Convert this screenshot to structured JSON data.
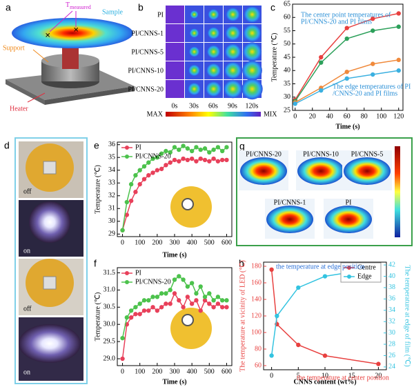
{
  "panels": {
    "a": {
      "label": "a",
      "t_main": "T",
      "t_sub": "measured",
      "sample": "Sample",
      "support": "Support",
      "heater": "Heater"
    },
    "b": {
      "label": "b",
      "rows": [
        "PI",
        "PI/CNNS-1",
        "PI/CNNS-5",
        "PI/CNNS-10",
        "PI/CNNS-20"
      ],
      "cols": [
        "0s",
        "30s",
        "60s",
        "90s",
        "120s"
      ],
      "colorbar": [
        "MAX",
        "MIX"
      ]
    },
    "d": {
      "label": "d",
      "photos": [
        "off",
        "on",
        "off",
        "on"
      ]
    },
    "g": {
      "label": "g",
      "names": [
        "PI/CNNS-20",
        "PI/CNNS-10",
        "PI/CNNS-5",
        "PI/CNNS-1",
        "PI"
      ]
    }
  },
  "chart_data": [
    {
      "type": "line",
      "panel": "c",
      "xlabel": "Time (s)",
      "ylabel": "Temperature (℃)",
      "x": [
        0,
        30,
        60,
        90,
        120
      ],
      "xlim": [
        -3,
        125
      ],
      "ylim": [
        25,
        65
      ],
      "xticks": [
        0,
        20,
        40,
        60,
        80,
        100,
        120
      ],
      "yticks": [
        25,
        30,
        35,
        40,
        45,
        50,
        55,
        60,
        65
      ],
      "series": [
        {
          "color": "#e8403f",
          "values": [
            29,
            45,
            56,
            59.5,
            61.5
          ]
        },
        {
          "color": "#2ca05a",
          "values": [
            28.5,
            43,
            52,
            55,
            56.5
          ]
        },
        {
          "color": "#f08a3c",
          "values": [
            28,
            33.5,
            39.5,
            42.5,
            44
          ]
        },
        {
          "color": "#3bb0e0",
          "values": [
            27.5,
            32.5,
            37,
            38.5,
            40
          ]
        }
      ],
      "annotations": [
        {
          "lines": [
            "The center point temperatures of",
            "PI/CNNS-20 and PI films"
          ],
          "color": "#2a8fd6"
        },
        {
          "lines": [
            "The edge temperatures of PI",
            "/CNNS-20 and PI films"
          ],
          "color": "#2a8fd6"
        }
      ]
    },
    {
      "type": "line",
      "panel": "e",
      "xlabel": "Time (s)",
      "ylabel": "Temperature (℃)",
      "legend": "upper left",
      "x": [
        0,
        25,
        50,
        75,
        100,
        125,
        150,
        175,
        200,
        225,
        250,
        275,
        300,
        325,
        350,
        375,
        400,
        425,
        450,
        475,
        500,
        525,
        550,
        575,
        600
      ],
      "xlim": [
        -30,
        630
      ],
      "ylim": [
        28.8,
        36.2
      ],
      "xticks": [
        0,
        100,
        200,
        300,
        400,
        500,
        600
      ],
      "yticks": [
        29,
        30,
        31,
        32,
        33,
        34,
        35,
        36
      ],
      "series": [
        {
          "name": "PI",
          "color": "#e8405a",
          "values": [
            29.3,
            30.5,
            31.6,
            32.3,
            32.9,
            33.3,
            33.6,
            33.8,
            34.0,
            34.1,
            34.4,
            34.6,
            34.8,
            34.7,
            34.9,
            34.8,
            34.9,
            34.7,
            34.9,
            34.8,
            34.7,
            34.9,
            34.7,
            34.8,
            34.8
          ]
        },
        {
          "name": "PI/CNNS-20",
          "color": "#4cc24c",
          "values": [
            29.3,
            31.5,
            32.9,
            33.6,
            34.0,
            34.3,
            34.6,
            34.9,
            35.0,
            35.3,
            35.5,
            35.4,
            35.8,
            35.6,
            35.9,
            35.7,
            35.5,
            35.8,
            35.6,
            35.7,
            35.4,
            35.6,
            35.8,
            35.5,
            35.8
          ]
        }
      ]
    },
    {
      "type": "line",
      "panel": "f",
      "xlabel": "Time (s)",
      "ylabel": "Temperature (℃)",
      "legend": "upper left",
      "x": [
        0,
        25,
        50,
        75,
        100,
        125,
        150,
        175,
        200,
        225,
        250,
        275,
        300,
        325,
        350,
        375,
        400,
        425,
        450,
        475,
        500,
        525,
        550,
        575,
        600
      ],
      "xlim": [
        -30,
        630
      ],
      "ylim": [
        28.8,
        31.65
      ],
      "xticks": [
        0,
        100,
        200,
        300,
        400,
        500,
        600
      ],
      "yticks": [
        {
          "value": 29,
          "label": "29.0"
        },
        29.5,
        {
          "value": 30,
          "label": "30.0"
        },
        30.5,
        {
          "value": 31,
          "label": "31.0"
        },
        31.5
      ],
      "series": [
        {
          "name": "PI",
          "color": "#e8405a",
          "values": [
            29.0,
            30.0,
            30.2,
            30.3,
            30.3,
            30.4,
            30.4,
            30.5,
            30.4,
            30.5,
            30.6,
            30.6,
            30.9,
            30.7,
            30.5,
            30.8,
            30.6,
            30.7,
            30.4,
            30.7,
            30.6,
            30.5,
            30.6,
            30.5,
            30.5
          ]
        },
        {
          "name": "PI/CNNS-20",
          "color": "#4cc24c",
          "values": [
            29.6,
            30.2,
            30.4,
            30.5,
            30.6,
            30.7,
            30.7,
            30.8,
            30.8,
            30.9,
            30.9,
            31.0,
            31.3,
            31.4,
            31.3,
            31.1,
            31.2,
            30.9,
            31.1,
            30.8,
            30.9,
            30.7,
            30.8,
            30.7,
            30.7
          ]
        }
      ]
    },
    {
      "type": "line",
      "panel": "h",
      "xlabel": "CNNS content (wt%)",
      "ylabel": "The temperature at vicinity of LED (℃)",
      "y2label": "The temperature at edge of film (℃)",
      "legend": "upper right",
      "y_color": "#e8403f",
      "y2_color": "#33c3e0",
      "x": [
        0,
        1,
        5,
        10,
        20
      ],
      "xlim": [
        -1.5,
        21.5
      ],
      "ylim": [
        55,
        185
      ],
      "y2lim": [
        23.5,
        42.5
      ],
      "xticks": [
        0,
        5,
        10,
        15,
        20
      ],
      "yticks": [
        60,
        80,
        100,
        120,
        140,
        160,
        180
      ],
      "y2ticks": [
        24,
        26,
        28,
        30,
        32,
        34,
        36,
        38,
        40,
        42
      ],
      "series": [
        {
          "name": "Centre",
          "color": "#e8403f",
          "values": [
            176,
            110,
            85,
            72,
            62
          ]
        },
        {
          "name": "Edge",
          "color": "#33c3e0",
          "axis": "y2",
          "values": [
            26,
            33,
            38,
            40,
            41.5
          ]
        }
      ],
      "annotations": [
        {
          "lines": [
            "the temperature at edge position"
          ],
          "color": "#2a6fd6"
        },
        {
          "lines": [
            "the temperature at center position"
          ],
          "color": "#e8403f"
        }
      ]
    }
  ]
}
